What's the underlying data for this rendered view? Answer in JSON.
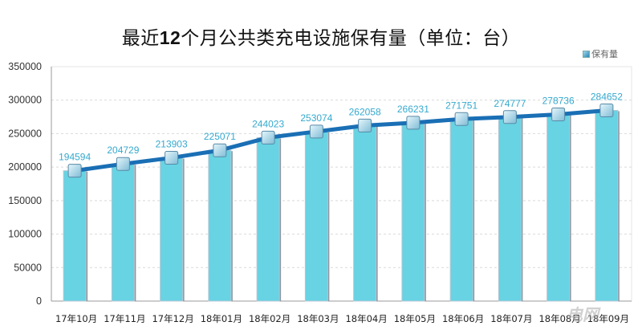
{
  "title": "最近12个月公共类充电设施保有量（单位：台）",
  "title_parts": {
    "pre": "最近",
    "num": "12",
    "post": "个月公共类充电设施保有量（单位：台）"
  },
  "legend": {
    "label": "保有量"
  },
  "watermark": "电网",
  "colors": {
    "bar": "#67d3e3",
    "bar_edge": "#8fa3b3",
    "line": "#1a6fb5",
    "label": "#35a9cf",
    "grid": "#d9d9d9"
  },
  "chart_data": {
    "type": "bar",
    "title": "最近12个月公共类充电设施保有量（单位：台）",
    "xlabel": "",
    "ylabel": "",
    "ylim": [
      0,
      350000
    ],
    "yticks": [
      0,
      50000,
      100000,
      150000,
      200000,
      250000,
      300000,
      350000
    ],
    "grid": true,
    "legend_position": "top-right",
    "categories": [
      "17年10月",
      "17年11月",
      "17年12月",
      "18年01月",
      "18年02月",
      "18年03月",
      "18年04月",
      "18年05月",
      "18年06月",
      "18年07月",
      "18年08月",
      "18年09月"
    ],
    "series": [
      {
        "name": "保有量",
        "type": "bar",
        "values": [
          194594,
          204729,
          213903,
          225071,
          244023,
          253074,
          262058,
          266231,
          271751,
          274777,
          278736,
          284652
        ]
      },
      {
        "name": "保有量",
        "type": "line",
        "values": [
          194594,
          204729,
          213903,
          225071,
          244023,
          253074,
          262058,
          266231,
          271751,
          274777,
          278736,
          284652
        ]
      }
    ],
    "data_labels": true
  }
}
